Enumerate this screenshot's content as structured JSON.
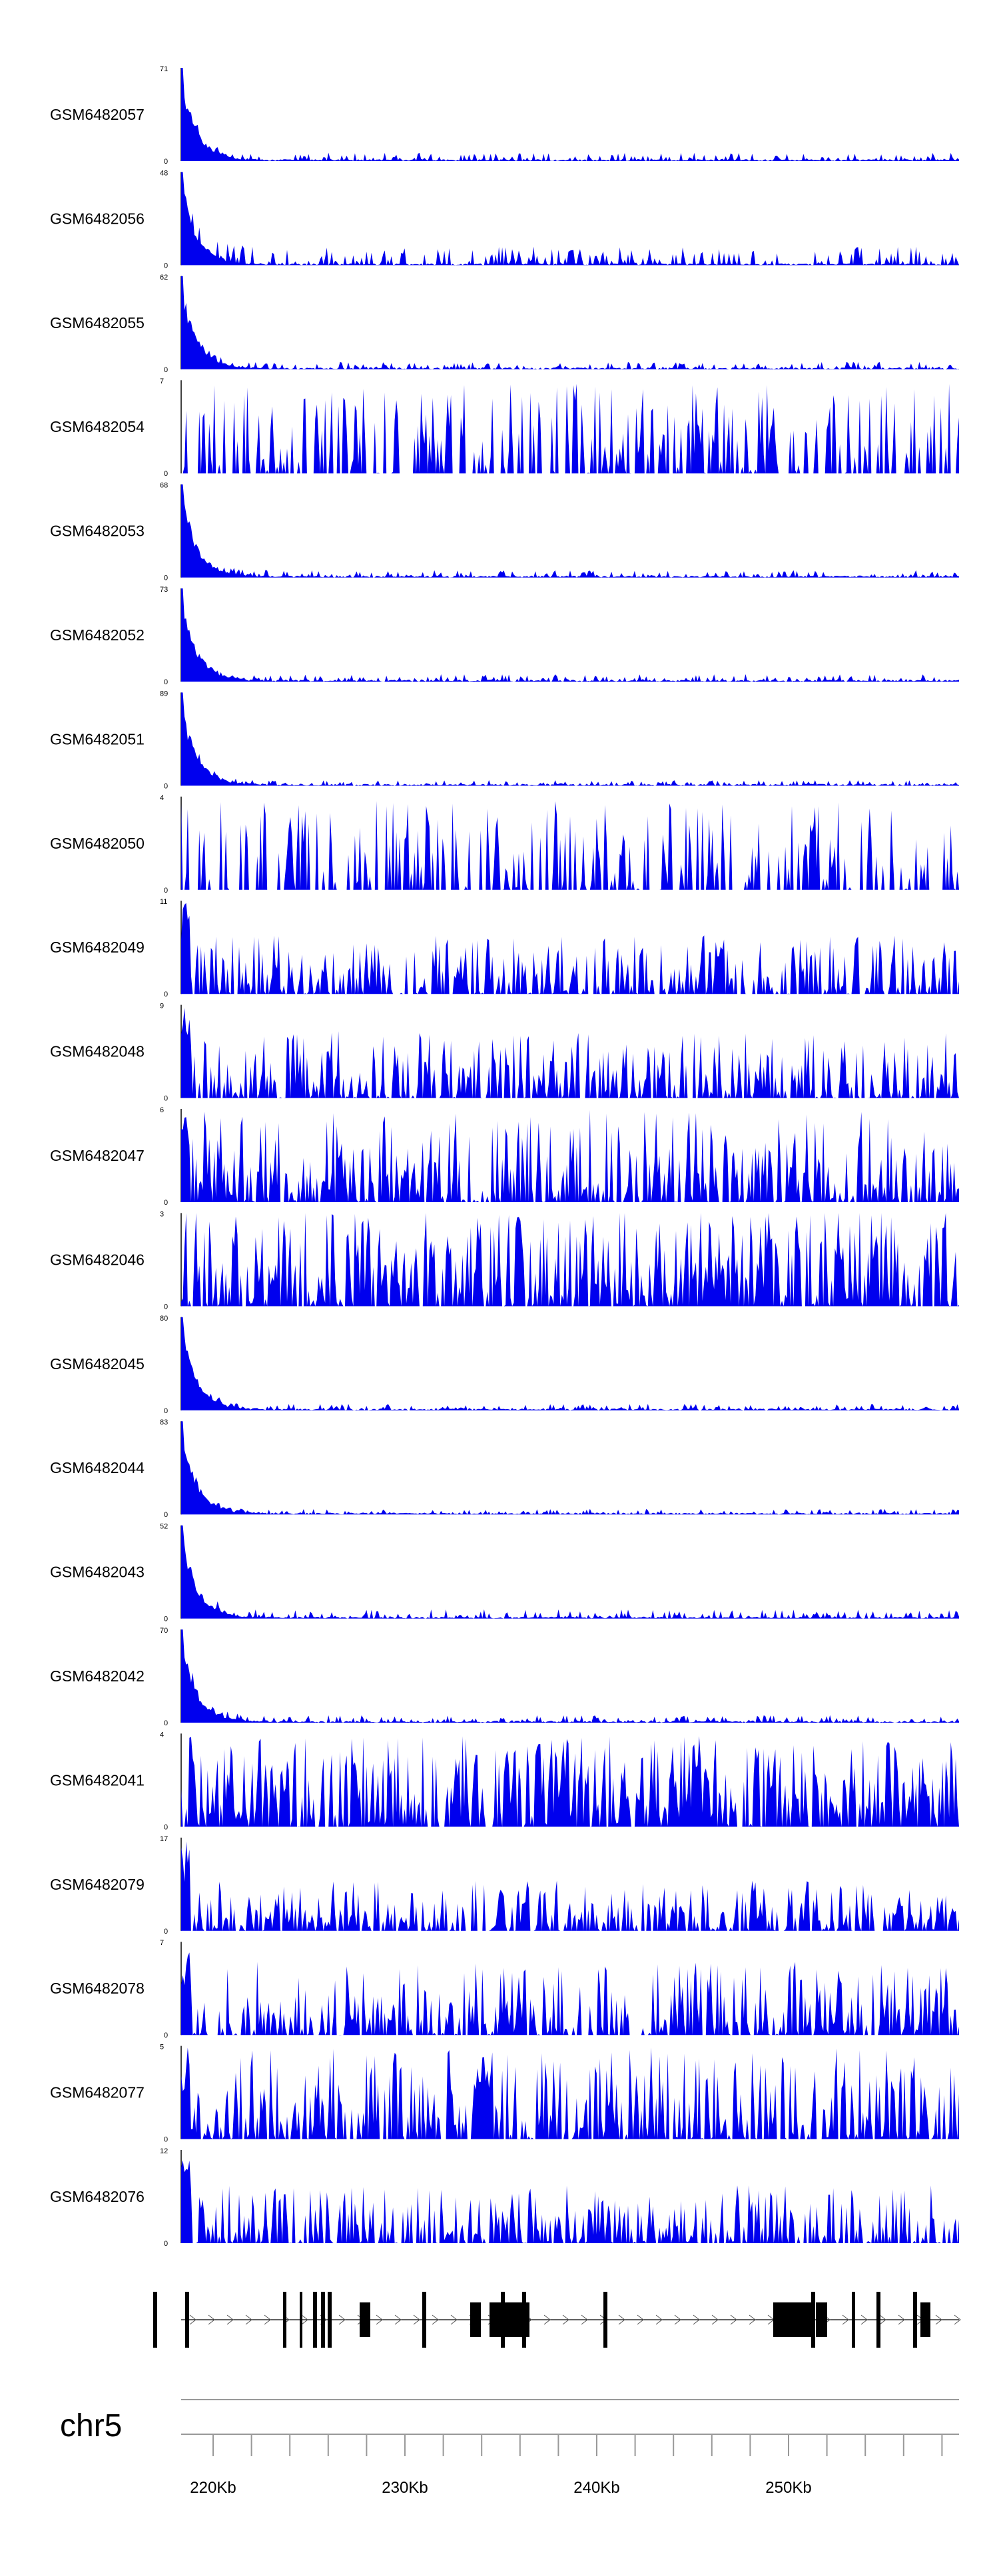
{
  "colors": {
    "signal": "#0000ee",
    "axis": "#000000",
    "scale_line": "#999999"
  },
  "tracks": [
    {
      "name": "GSM6482057",
      "max": "71",
      "min": "0",
      "profile": "peak",
      "level": 0.09
    },
    {
      "name": "GSM6482056",
      "max": "48",
      "min": "0",
      "profile": "peak",
      "level": 0.2
    },
    {
      "name": "GSM6482055",
      "max": "62",
      "min": "0",
      "profile": "peak",
      "level": 0.08
    },
    {
      "name": "GSM6482054",
      "max": "7",
      "min": "0",
      "profile": "sparse",
      "level": 0.6
    },
    {
      "name": "GSM6482053",
      "max": "68",
      "min": "0",
      "profile": "peak",
      "level": 0.08
    },
    {
      "name": "GSM6482052",
      "max": "73",
      "min": "0",
      "profile": "peak",
      "level": 0.08
    },
    {
      "name": "GSM6482051",
      "max": "89",
      "min": "0",
      "profile": "peak",
      "level": 0.06
    },
    {
      "name": "GSM6482050",
      "max": "4",
      "min": "0",
      "profile": "sparse",
      "level": 0.6
    },
    {
      "name": "GSM6482049",
      "max": "11",
      "min": "0",
      "profile": "noisy",
      "level": 0.35
    },
    {
      "name": "GSM6482048",
      "max": "9",
      "min": "0",
      "profile": "noisy",
      "level": 0.4
    },
    {
      "name": "GSM6482047",
      "max": "6",
      "min": "0",
      "profile": "noisy",
      "level": 0.55
    },
    {
      "name": "GSM6482046",
      "max": "3",
      "min": "0",
      "profile": "dense",
      "level": 0.7
    },
    {
      "name": "GSM6482045",
      "max": "80",
      "min": "0",
      "profile": "peak",
      "level": 0.07
    },
    {
      "name": "GSM6482044",
      "max": "83",
      "min": "0",
      "profile": "peak",
      "level": 0.06
    },
    {
      "name": "GSM6482043",
      "max": "52",
      "min": "0",
      "profile": "peak",
      "level": 0.1
    },
    {
      "name": "GSM6482042",
      "max": "70",
      "min": "0",
      "profile": "peak",
      "level": 0.08
    },
    {
      "name": "GSM6482041",
      "max": "4",
      "min": "0",
      "profile": "dense",
      "level": 0.65
    },
    {
      "name": "GSM6482079",
      "max": "17",
      "min": "0",
      "profile": "noisy",
      "level": 0.3
    },
    {
      "name": "GSM6482078",
      "max": "7",
      "min": "0",
      "profile": "noisy",
      "level": 0.45
    },
    {
      "name": "GSM6482077",
      "max": "5",
      "min": "0",
      "profile": "noisy",
      "level": 0.55
    },
    {
      "name": "GSM6482076",
      "max": "12",
      "min": "0",
      "profile": "noisy",
      "level": 0.35
    }
  ],
  "gene_track": {
    "exons": [
      [
        230,
        236
      ],
      [
        278,
        284
      ],
      [
        425,
        430
      ],
      [
        450,
        454
      ],
      [
        470,
        476
      ],
      [
        482,
        488
      ],
      [
        492,
        498
      ],
      [
        540,
        556
      ],
      [
        634,
        640
      ],
      [
        706,
        722
      ],
      [
        735,
        795
      ],
      [
        752,
        758
      ],
      [
        784,
        790
      ],
      [
        906,
        912
      ],
      [
        1161,
        1222
      ],
      [
        1218,
        1224
      ],
      [
        1225,
        1242
      ],
      [
        1279,
        1284
      ],
      [
        1316,
        1322
      ],
      [
        1371,
        1377
      ],
      [
        1382,
        1397
      ]
    ]
  },
  "axis": {
    "chromosome": "chr5",
    "ticks": [
      {
        "label": "220Kb",
        "kb": 220
      },
      {
        "label": "230Kb",
        "kb": 230
      },
      {
        "label": "240Kb",
        "kb": 240
      },
      {
        "label": "250Kb",
        "kb": 250
      }
    ]
  }
}
